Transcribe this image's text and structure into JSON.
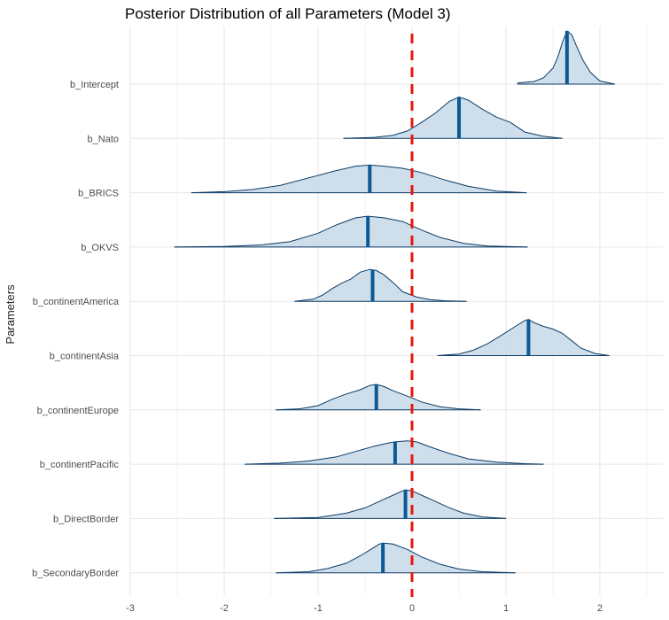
{
  "chart_data": {
    "type": "density_ridges",
    "title": "Posterior Distribution of all Parameters (Model 3)",
    "xlabel": "",
    "ylabel": "Parameters",
    "xlim": [
      -3,
      2.6
    ],
    "xticks": [
      -3,
      -2,
      -1,
      0,
      1,
      2
    ],
    "reference_line": {
      "x": 0,
      "style": "dashed",
      "color": "#e8160c"
    },
    "colors": {
      "fill": "#c9dbe9",
      "outline": "#0b3a66",
      "median": "#0b5a96"
    },
    "grid": true,
    "parameters": [
      {
        "name": "b_Intercept",
        "median": 1.65,
        "min": 1.12,
        "max": 2.16,
        "density_x": [
          1.12,
          1.3,
          1.4,
          1.5,
          1.55,
          1.6,
          1.65,
          1.7,
          1.75,
          1.82,
          1.9,
          2.0,
          2.16
        ],
        "density_y": [
          0.02,
          0.05,
          0.12,
          0.3,
          0.5,
          0.78,
          1.0,
          0.93,
          0.72,
          0.45,
          0.22,
          0.06,
          0.0
        ]
      },
      {
        "name": "b_Nato",
        "median": 0.5,
        "min": -0.73,
        "max": 1.6,
        "density_x": [
          -0.73,
          -0.4,
          -0.2,
          -0.05,
          0.1,
          0.25,
          0.4,
          0.5,
          0.6,
          0.75,
          0.9,
          1.05,
          1.2,
          1.4,
          1.6
        ],
        "density_y": [
          0.0,
          0.02,
          0.06,
          0.14,
          0.3,
          0.48,
          0.7,
          0.78,
          0.72,
          0.55,
          0.4,
          0.3,
          0.12,
          0.04,
          0.0
        ]
      },
      {
        "name": "b_BRICS",
        "median": -0.45,
        "min": -2.35,
        "max": 1.22,
        "density_x": [
          -2.35,
          -2.0,
          -1.7,
          -1.4,
          -1.1,
          -0.8,
          -0.6,
          -0.45,
          -0.3,
          -0.1,
          0.1,
          0.35,
          0.6,
          0.9,
          1.22
        ],
        "density_y": [
          0.0,
          0.02,
          0.06,
          0.14,
          0.28,
          0.42,
          0.5,
          0.52,
          0.5,
          0.46,
          0.38,
          0.24,
          0.12,
          0.03,
          0.0
        ]
      },
      {
        "name": "b_OKVS",
        "median": -0.47,
        "min": -2.53,
        "max": 1.23,
        "density_x": [
          -2.53,
          -2.0,
          -1.6,
          -1.3,
          -1.0,
          -0.8,
          -0.6,
          -0.47,
          -0.3,
          -0.1,
          0.1,
          0.3,
          0.55,
          0.8,
          1.23
        ],
        "density_y": [
          0.0,
          0.01,
          0.04,
          0.1,
          0.26,
          0.42,
          0.55,
          0.58,
          0.55,
          0.48,
          0.32,
          0.18,
          0.07,
          0.02,
          0.0
        ]
      },
      {
        "name": "b_continentAmerica",
        "median": -0.42,
        "min": -1.25,
        "max": 0.58,
        "density_x": [
          -1.25,
          -1.05,
          -0.95,
          -0.85,
          -0.75,
          -0.65,
          -0.55,
          -0.45,
          -0.38,
          -0.3,
          -0.2,
          -0.1,
          0.05,
          0.2,
          0.35,
          0.58
        ],
        "density_y": [
          0.0,
          0.04,
          0.12,
          0.24,
          0.34,
          0.42,
          0.55,
          0.6,
          0.58,
          0.5,
          0.35,
          0.18,
          0.08,
          0.03,
          0.01,
          0.0
        ]
      },
      {
        "name": "b_continentAsia",
        "median": 1.24,
        "min": 0.27,
        "max": 2.1,
        "density_x": [
          0.27,
          0.5,
          0.65,
          0.8,
          0.95,
          1.1,
          1.2,
          1.24,
          1.3,
          1.4,
          1.5,
          1.6,
          1.7,
          1.8,
          1.95,
          2.1
        ],
        "density_y": [
          0.0,
          0.03,
          0.1,
          0.22,
          0.38,
          0.55,
          0.66,
          0.68,
          0.62,
          0.55,
          0.5,
          0.42,
          0.28,
          0.14,
          0.04,
          0.0
        ]
      },
      {
        "name": "b_continentEurope",
        "median": -0.38,
        "min": -1.45,
        "max": 0.73,
        "density_x": [
          -1.45,
          -1.2,
          -1.0,
          -0.85,
          -0.7,
          -0.55,
          -0.45,
          -0.38,
          -0.3,
          -0.2,
          -0.05,
          0.1,
          0.3,
          0.5,
          0.73
        ],
        "density_y": [
          0.0,
          0.02,
          0.08,
          0.2,
          0.3,
          0.38,
          0.46,
          0.48,
          0.44,
          0.36,
          0.26,
          0.15,
          0.06,
          0.02,
          0.0
        ]
      },
      {
        "name": "b_continentPacific",
        "median": -0.18,
        "min": -1.78,
        "max": 1.4,
        "density_x": [
          -1.78,
          -1.4,
          -1.1,
          -0.8,
          -0.6,
          -0.4,
          -0.25,
          -0.18,
          -0.05,
          0.05,
          0.2,
          0.4,
          0.6,
          0.9,
          1.2,
          1.4
        ],
        "density_y": [
          0.0,
          0.02,
          0.06,
          0.14,
          0.24,
          0.34,
          0.4,
          0.42,
          0.44,
          0.42,
          0.32,
          0.2,
          0.1,
          0.04,
          0.01,
          0.0
        ]
      },
      {
        "name": "b_DirectBorder",
        "median": -0.07,
        "min": -1.47,
        "max": 1.0,
        "density_x": [
          -1.47,
          -1.0,
          -0.7,
          -0.5,
          -0.35,
          -0.2,
          -0.1,
          -0.07,
          0.0,
          0.1,
          0.25,
          0.4,
          0.55,
          0.75,
          1.0
        ],
        "density_y": [
          0.0,
          0.02,
          0.1,
          0.2,
          0.32,
          0.44,
          0.52,
          0.54,
          0.52,
          0.44,
          0.32,
          0.2,
          0.1,
          0.03,
          0.0
        ]
      },
      {
        "name": "b_SecondaryBorder",
        "median": -0.31,
        "min": -1.45,
        "max": 1.1,
        "density_x": [
          -1.45,
          -1.1,
          -0.9,
          -0.7,
          -0.55,
          -0.42,
          -0.35,
          -0.31,
          -0.2,
          -0.05,
          0.1,
          0.3,
          0.5,
          0.75,
          1.1
        ],
        "density_y": [
          0.0,
          0.02,
          0.08,
          0.18,
          0.32,
          0.46,
          0.54,
          0.56,
          0.54,
          0.44,
          0.3,
          0.16,
          0.07,
          0.02,
          0.0
        ]
      }
    ]
  }
}
